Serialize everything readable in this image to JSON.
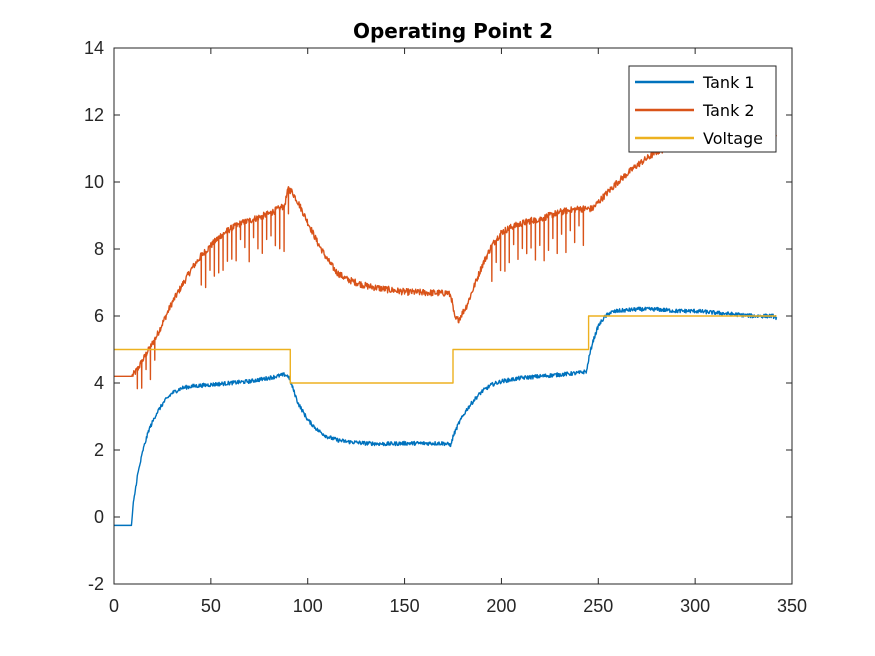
{
  "chart_data": {
    "type": "line",
    "title": "Operating Point 2",
    "xlabel": "",
    "ylabel": "",
    "xlim": [
      0,
      350
    ],
    "ylim": [
      -2,
      14
    ],
    "xticks": [
      0,
      50,
      100,
      150,
      200,
      250,
      300,
      350
    ],
    "yticks": [
      -2,
      0,
      2,
      4,
      6,
      8,
      10,
      12,
      14
    ],
    "grid": false,
    "legend": {
      "position": "top-right",
      "entries": [
        "Tank 1",
        "Tank 2",
        "Voltage"
      ]
    },
    "series": [
      {
        "name": "Tank 1",
        "color": "#0072BD",
        "x": [
          0,
          5,
          9,
          10,
          12,
          15,
          18,
          22,
          26,
          30,
          35,
          40,
          50,
          60,
          70,
          80,
          88,
          90,
          92,
          95,
          100,
          105,
          110,
          115,
          120,
          130,
          140,
          150,
          160,
          170,
          174,
          175,
          178,
          182,
          186,
          190,
          195,
          200,
          210,
          220,
          230,
          240,
          244,
          245,
          247,
          250,
          253,
          256,
          260,
          270,
          280,
          290,
          300,
          310,
          320,
          330,
          335,
          340,
          342
        ],
        "values": [
          -0.25,
          -0.25,
          -0.25,
          0.4,
          1.2,
          2.0,
          2.6,
          3.1,
          3.45,
          3.7,
          3.85,
          3.9,
          3.95,
          4.0,
          4.05,
          4.15,
          4.25,
          4.2,
          3.9,
          3.4,
          2.9,
          2.6,
          2.4,
          2.3,
          2.25,
          2.2,
          2.18,
          2.2,
          2.2,
          2.2,
          2.15,
          2.4,
          2.8,
          3.2,
          3.5,
          3.75,
          3.95,
          4.05,
          4.15,
          4.2,
          4.25,
          4.3,
          4.35,
          4.7,
          5.2,
          5.7,
          5.95,
          6.1,
          6.15,
          6.2,
          6.2,
          6.15,
          6.15,
          6.1,
          6.05,
          6.0,
          6.0,
          6.0,
          5.95
        ],
        "noise": 0.06
      },
      {
        "name": "Tank 2",
        "color": "#D95319",
        "x": [
          0,
          5,
          9,
          10,
          12,
          15,
          18,
          22,
          26,
          30,
          35,
          40,
          45,
          50,
          55,
          60,
          65,
          70,
          75,
          80,
          85,
          88,
          90,
          92,
          95,
          100,
          105,
          110,
          115,
          120,
          130,
          140,
          150,
          160,
          170,
          172,
          174,
          176,
          178,
          182,
          186,
          190,
          195,
          200,
          205,
          210,
          215,
          220,
          225,
          230,
          235,
          240,
          244,
          245,
          247,
          250,
          255,
          260,
          270,
          280,
          290,
          300,
          310,
          320,
          330,
          335,
          340,
          342
        ],
        "values": [
          4.2,
          4.2,
          4.2,
          4.25,
          4.4,
          4.7,
          5.0,
          5.4,
          5.9,
          6.4,
          6.9,
          7.4,
          7.8,
          8.1,
          8.4,
          8.6,
          8.75,
          8.85,
          8.95,
          9.05,
          9.2,
          9.3,
          9.8,
          9.7,
          9.4,
          8.8,
          8.2,
          7.7,
          7.3,
          7.1,
          6.9,
          6.8,
          6.72,
          6.7,
          6.68,
          6.7,
          6.6,
          5.9,
          5.9,
          6.3,
          6.9,
          7.5,
          8.1,
          8.5,
          8.65,
          8.75,
          8.85,
          8.9,
          9.0,
          9.1,
          9.15,
          9.2,
          9.2,
          9.2,
          9.2,
          9.4,
          9.7,
          10.0,
          10.5,
          10.9,
          11.1,
          11.2,
          11.2,
          11.2,
          11.25,
          11.3,
          11.35,
          11.4
        ],
        "noise": 0.1,
        "spike_regions": [
          [
            10,
            22,
            0.8
          ],
          [
            44,
            90,
            1.0
          ],
          [
            193,
            244,
            1.0
          ]
        ]
      },
      {
        "name": "Voltage",
        "color": "#EDB120",
        "step": true,
        "x": [
          0,
          91,
          91,
          175,
          175,
          245,
          245,
          342
        ],
        "values": [
          5,
          5,
          4,
          4,
          5,
          5,
          6,
          6
        ]
      }
    ]
  }
}
